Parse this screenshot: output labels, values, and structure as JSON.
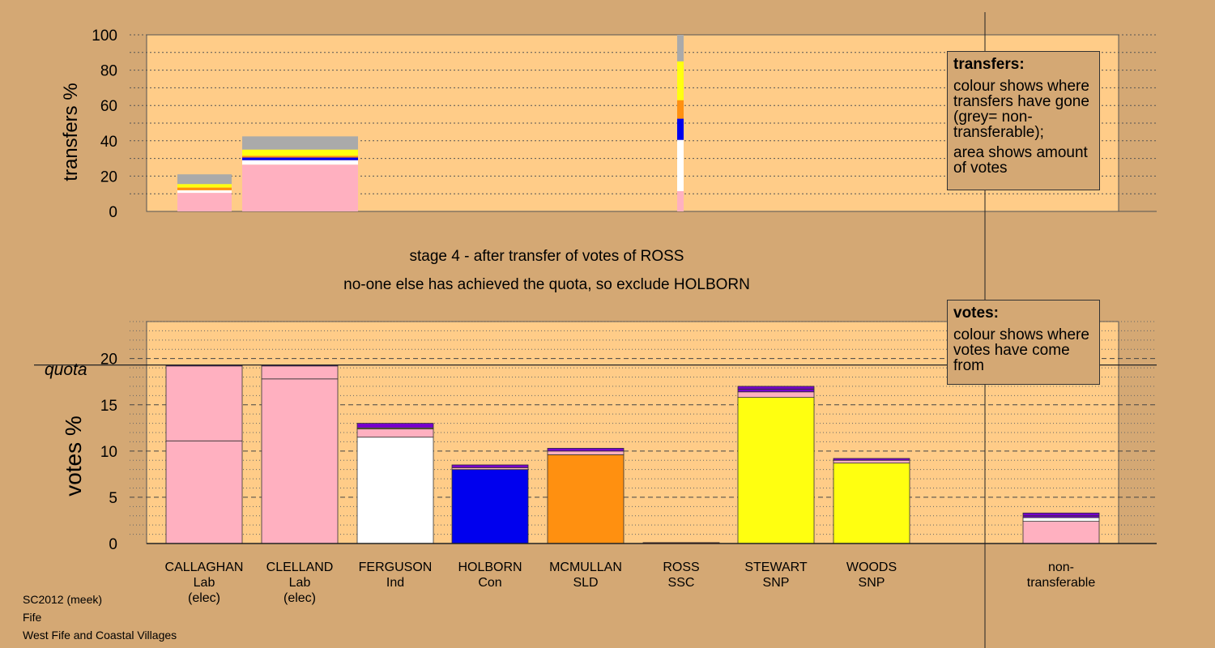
{
  "stage_title": "stage 4 - after transfer of votes of ROSS",
  "stage_note": "no-one else has achieved the quota, so exclude HOLBORN",
  "legend_transfers": {
    "heading": "transfers:",
    "text1": "colour shows where transfers have gone (grey= non-transferable);",
    "text2": "area shows amount of votes"
  },
  "legend_votes": {
    "heading": "votes:",
    "text1": "colour shows where votes have come from"
  },
  "footer": {
    "line1": "SC2012 (meek)",
    "line2": "Fife",
    "line3": "West Fife and Coastal Villages"
  },
  "colors": {
    "background": "#d4a874",
    "plot_bg": "#ffcc88",
    "Lab": "#ffb0c0",
    "Ind": "#ffffff",
    "Con": "#0000ee",
    "SLD": "#ff9010",
    "SSC": "#cc0000",
    "SNP": "#ffff10",
    "purple": "#7700cc",
    "dark": "#333333",
    "grey": "#aaaaaa"
  },
  "chart_data": [
    {
      "type": "bar",
      "ylabel": "transfers %",
      "ylim": [
        0,
        100
      ],
      "yticks": [
        0,
        20,
        40,
        60,
        80,
        100
      ],
      "bars": [
        {
          "candidate": "CALLAGHAN",
          "segments": [
            {
              "from": 0,
              "to": 10.5,
              "color": "Lab"
            },
            {
              "from": 10.5,
              "to": 12,
              "color": "Ind"
            },
            {
              "from": 12,
              "to": 13.5,
              "color": "SLD"
            },
            {
              "from": 13.5,
              "to": 15.5,
              "color": "SNP"
            },
            {
              "from": 15.5,
              "to": 21,
              "color": "grey"
            }
          ]
        },
        {
          "candidate": "CLELLAND",
          "segments": [
            {
              "from": 0,
              "to": 26.5,
              "color": "Lab"
            },
            {
              "from": 26.5,
              "to": 29,
              "color": "Ind"
            },
            {
              "from": 29,
              "to": 30.5,
              "color": "Con"
            },
            {
              "from": 30.5,
              "to": 31.5,
              "color": "SLD"
            },
            {
              "from": 31.5,
              "to": 35,
              "color": "SNP"
            },
            {
              "from": 35,
              "to": 42.5,
              "color": "grey"
            }
          ]
        },
        {
          "candidate": "ROSS",
          "segments": [
            {
              "from": 0,
              "to": 11.5,
              "color": "Lab"
            },
            {
              "from": 11.5,
              "to": 40.5,
              "color": "Ind"
            },
            {
              "from": 40.5,
              "to": 52.5,
              "color": "Con"
            },
            {
              "from": 52.5,
              "to": 63,
              "color": "SLD"
            },
            {
              "from": 63,
              "to": 85,
              "color": "SNP"
            },
            {
              "from": 85,
              "to": 100,
              "color": "grey"
            }
          ]
        }
      ]
    },
    {
      "type": "bar",
      "ylabel": "votes %",
      "ylim": [
        0,
        24
      ],
      "yticks": [
        0,
        5,
        10,
        15,
        20
      ],
      "quota": 19.3,
      "quota_label": "quota",
      "bars": [
        {
          "name": "CALLAGHAN",
          "party": "Lab",
          "note": "(elec)",
          "total": 19.3,
          "segments": [
            {
              "to": 11.1,
              "color": "Lab"
            },
            {
              "to": 19.2,
              "color": "Lab"
            },
            {
              "to": 19.3,
              "color": "purple"
            }
          ]
        },
        {
          "name": "CLELLAND",
          "party": "Lab",
          "note": "(elec)",
          "total": 19.3,
          "segments": [
            {
              "to": 17.8,
              "color": "Lab"
            },
            {
              "to": 19.2,
              "color": "Lab"
            },
            {
              "to": 19.3,
              "color": "purple"
            }
          ]
        },
        {
          "name": "FERGUSON",
          "party": "Ind",
          "note": "",
          "total": 13.0,
          "segments": [
            {
              "to": 11.5,
              "color": "Ind"
            },
            {
              "to": 12.4,
              "color": "Lab"
            },
            {
              "to": 12.5,
              "color": "SNP"
            },
            {
              "to": 13.0,
              "color": "purple"
            }
          ]
        },
        {
          "name": "HOLBORN",
          "party": "Con",
          "note": "",
          "total": 8.5,
          "segments": [
            {
              "to": 8.0,
              "color": "Con"
            },
            {
              "to": 8.2,
              "color": "Lab"
            },
            {
              "to": 8.5,
              "color": "purple"
            }
          ]
        },
        {
          "name": "MCMULLAN",
          "party": "SLD",
          "note": "",
          "total": 10.3,
          "segments": [
            {
              "to": 9.6,
              "color": "SLD"
            },
            {
              "to": 10.0,
              "color": "Lab"
            },
            {
              "to": 10.3,
              "color": "purple"
            }
          ]
        },
        {
          "name": "ROSS",
          "party": "SSC",
          "note": "",
          "total": 0.1,
          "segments": [
            {
              "to": 0.1,
              "color": "SSC"
            }
          ]
        },
        {
          "name": "STEWART",
          "party": "SNP",
          "note": "",
          "total": 17.0,
          "segments": [
            {
              "to": 15.8,
              "color": "SNP"
            },
            {
              "to": 16.4,
              "color": "Lab"
            },
            {
              "to": 16.7,
              "color": "purple"
            },
            {
              "to": 17.0,
              "color": "purple"
            }
          ]
        },
        {
          "name": "WOODS",
          "party": "SNP",
          "note": "",
          "total": 9.2,
          "segments": [
            {
              "to": 8.7,
              "color": "SNP"
            },
            {
              "to": 9.0,
              "color": "Lab"
            },
            {
              "to": 9.2,
              "color": "purple"
            }
          ]
        },
        {
          "name": "non-",
          "party": "transferable",
          "note": "",
          "total": 3.3,
          "segments": [
            {
              "to": 2.4,
              "color": "Lab"
            },
            {
              "to": 2.8,
              "color": "Ind"
            },
            {
              "to": 3.0,
              "color": "purple"
            },
            {
              "to": 3.3,
              "color": "purple"
            }
          ]
        }
      ]
    }
  ]
}
